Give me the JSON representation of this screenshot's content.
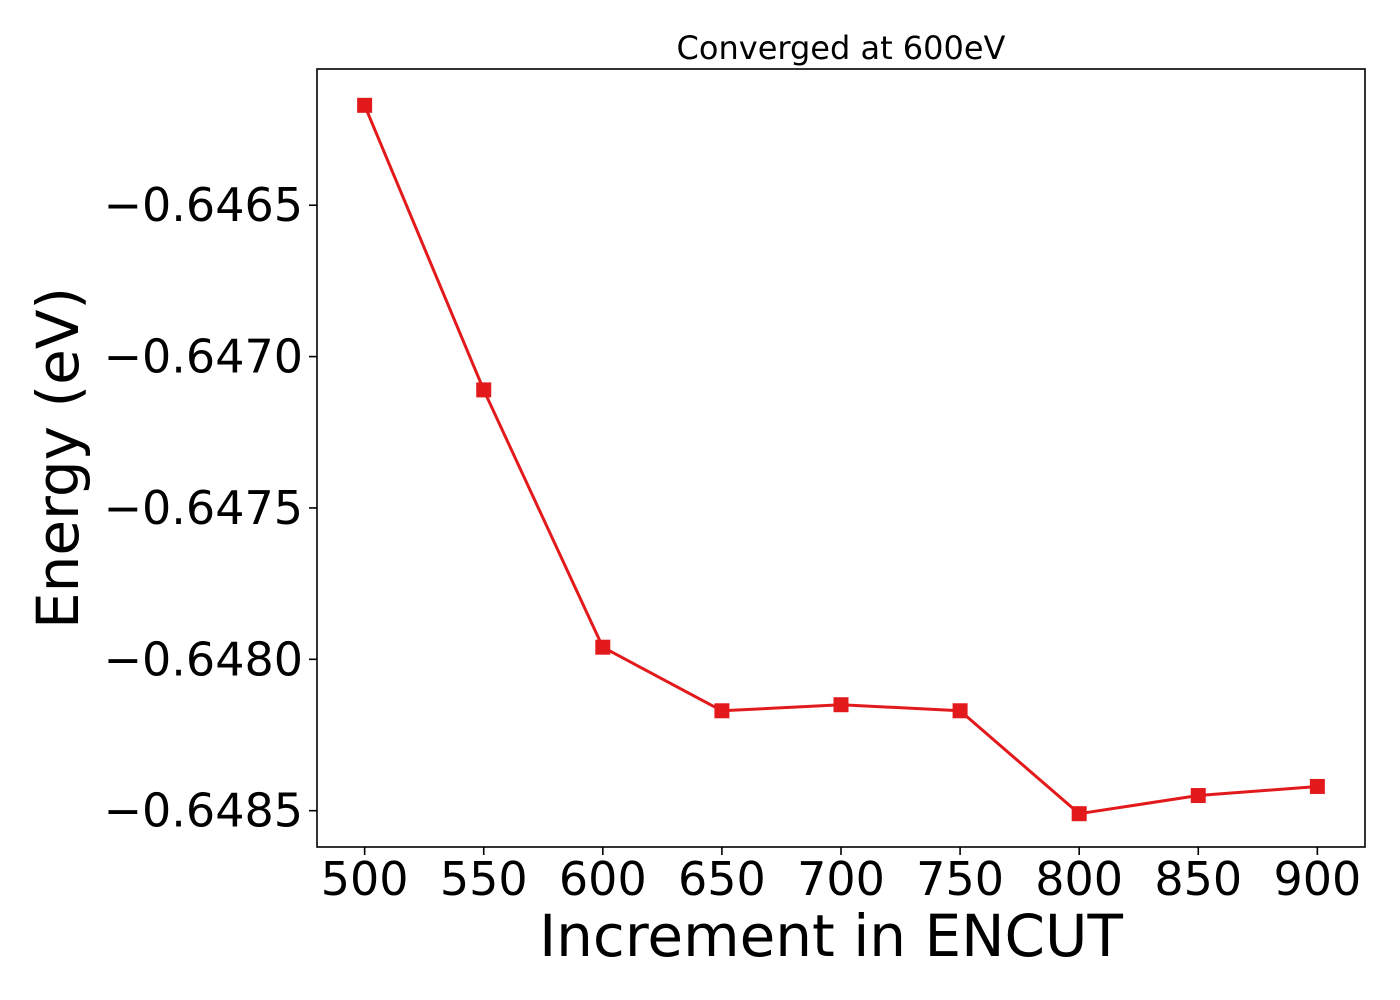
{
  "chart_data": {
    "type": "line",
    "title": "Converged at 600eV",
    "xlabel": "Increment in ENCUT",
    "ylabel": "Energy (eV)",
    "x": [
      500,
      550,
      600,
      650,
      700,
      750,
      800,
      850,
      900
    ],
    "xticks": [
      500,
      550,
      600,
      650,
      700,
      750,
      800,
      850,
      900
    ],
    "xlim": [
      480,
      920
    ],
    "ylim": [
      -0.64862,
      -0.64605
    ],
    "yticks": [
      -0.6465,
      -0.647,
      -0.6475,
      -0.648,
      -0.6485
    ],
    "ytick_labels": [
      "−0.6465",
      "−0.6470",
      "−0.6475",
      "−0.6480",
      "−0.6485"
    ],
    "grid": false,
    "series": [
      {
        "values": [
          -0.64617,
          -0.64711,
          -0.64796,
          -0.64817,
          -0.64815,
          -0.64817,
          -0.64851,
          -0.64845,
          -0.64842
        ],
        "color": "#e31a1c",
        "marker": "square"
      }
    ]
  }
}
